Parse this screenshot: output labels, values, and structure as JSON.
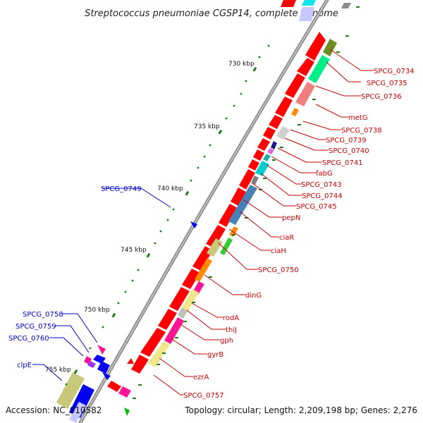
{
  "title": "Streptococcus pneumoniae CGSP14, complete genome",
  "footer": {
    "accession": "Accession: NC_010582",
    "summary": "Topology: circular; Length: 2,209,198 bp; Genes: 2,276"
  },
  "ticks": [
    {
      "label": "730 kbp"
    },
    {
      "label": "735 kbp"
    },
    {
      "label": "740 kbp"
    },
    {
      "label": "745 kbp"
    },
    {
      "label": "750 kbp"
    },
    {
      "label": "755 kbp"
    }
  ],
  "labels_right": [
    {
      "name": "SPCG_0734"
    },
    {
      "name": "SPCG_0735"
    },
    {
      "name": "SPCG_0736"
    },
    {
      "name": "metG"
    },
    {
      "name": "SPCG_0738"
    },
    {
      "name": "SPCG_0739"
    },
    {
      "name": "SPCG_0740"
    },
    {
      "name": "SPCG_0741"
    },
    {
      "name": "fabG"
    },
    {
      "name": "SPCG_0743"
    },
    {
      "name": "SPCG_0744"
    },
    {
      "name": "SPCG_0745"
    },
    {
      "name": "pepN"
    },
    {
      "name": "ciaR"
    },
    {
      "name": "ciaH"
    },
    {
      "name": "SPCG_0750"
    },
    {
      "name": "dinG"
    },
    {
      "name": "rodA"
    },
    {
      "name": "thiJ"
    },
    {
      "name": "gph"
    },
    {
      "name": "gyrB"
    },
    {
      "name": "ezrA"
    },
    {
      "name": "SPCG_0757"
    }
  ],
  "labels_left": [
    {
      "name": "SPCG_0749"
    },
    {
      "name": "SPCG_0758"
    },
    {
      "name": "SPCG_0759"
    },
    {
      "name": "SPCG_0760"
    },
    {
      "name": "clpE"
    }
  ],
  "colors": {
    "backbone": "#8c8c8c",
    "forward_gene": "#ff0000",
    "reverse_gene": "#0000ee",
    "tick": "#1a7f1a",
    "label_forward": "#cc0000",
    "label_reverse": "#0000cc"
  }
}
